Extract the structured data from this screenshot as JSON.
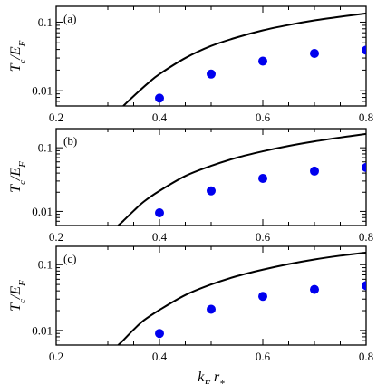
{
  "chart_data": [
    {
      "type": "scatter",
      "panel_label": "(a)",
      "ylabel": "T_c/E_F",
      "xlabel": "",
      "xlim": [
        0.2,
        0.8
      ],
      "ylim": [
        0.006,
        0.17
      ],
      "y_scale": "log",
      "x_ticks": [
        0.2,
        0.4,
        0.6,
        0.8
      ],
      "x_tick_labels": [
        "0.2",
        "0.4",
        "0.6",
        "0.8"
      ],
      "y_ticks": [
        0.01,
        0.1
      ],
      "y_tick_labels": [
        "0.01",
        "0.1"
      ],
      "series": [
        {
          "kind": "line",
          "color": "#000000",
          "x": [
            0.33,
            0.34,
            0.36,
            0.38,
            0.4,
            0.45,
            0.5,
            0.55,
            0.6,
            0.65,
            0.7,
            0.75,
            0.8
          ],
          "y": [
            0.006,
            0.0071,
            0.0098,
            0.0133,
            0.0175,
            0.03,
            0.045,
            0.06,
            0.076,
            0.091,
            0.106,
            0.12,
            0.134
          ]
        },
        {
          "kind": "points",
          "color": "#0000ee",
          "x": [
            0.4,
            0.5,
            0.6,
            0.7,
            0.8
          ],
          "y": [
            0.0078,
            0.0175,
            0.027,
            0.035,
            0.039
          ]
        }
      ]
    },
    {
      "type": "scatter",
      "panel_label": "(b)",
      "ylabel": "T_c/E_F",
      "xlabel": "",
      "xlim": [
        0.2,
        0.8
      ],
      "ylim": [
        0.006,
        0.2
      ],
      "y_scale": "log",
      "x_ticks": [
        0.2,
        0.4,
        0.6,
        0.8
      ],
      "x_tick_labels": [
        "0.2",
        "0.4",
        "0.6",
        "0.8"
      ],
      "y_ticks": [
        0.01,
        0.1
      ],
      "y_tick_labels": [
        "0.01",
        "0.1"
      ],
      "series": [
        {
          "kind": "line",
          "color": "#000000",
          "x": [
            0.32,
            0.33,
            0.35,
            0.37,
            0.4,
            0.45,
            0.5,
            0.55,
            0.6,
            0.65,
            0.7,
            0.75,
            0.8
          ],
          "y": [
            0.006,
            0.0071,
            0.0102,
            0.0143,
            0.021,
            0.036,
            0.052,
            0.07,
            0.088,
            0.107,
            0.126,
            0.145,
            0.165
          ]
        },
        {
          "kind": "points",
          "color": "#0000ee",
          "x": [
            0.4,
            0.5,
            0.6,
            0.7,
            0.8
          ],
          "y": [
            0.0095,
            0.021,
            0.033,
            0.043,
            0.049
          ]
        }
      ]
    },
    {
      "type": "scatter",
      "panel_label": "(c)",
      "ylabel": "T_c/E_F",
      "xlabel": "k_F r_*",
      "xlim": [
        0.2,
        0.8
      ],
      "ylim": [
        0.006,
        0.19
      ],
      "y_scale": "log",
      "x_ticks": [
        0.2,
        0.4,
        0.6,
        0.8
      ],
      "x_tick_labels": [
        "0.2",
        "0.4",
        "0.6",
        "0.8"
      ],
      "y_ticks": [
        0.01,
        0.1
      ],
      "y_tick_labels": [
        "0.01",
        "0.1"
      ],
      "series": [
        {
          "kind": "line",
          "color": "#000000",
          "x": [
            0.32,
            0.33,
            0.35,
            0.37,
            0.4,
            0.45,
            0.5,
            0.55,
            0.6,
            0.65,
            0.7,
            0.75,
            0.8
          ],
          "y": [
            0.006,
            0.0071,
            0.0103,
            0.0143,
            0.0205,
            0.0345,
            0.05,
            0.067,
            0.084,
            0.102,
            0.12,
            0.137,
            0.153
          ]
        },
        {
          "kind": "points",
          "color": "#0000ee",
          "x": [
            0.4,
            0.5,
            0.6,
            0.7,
            0.8
          ],
          "y": [
            0.009,
            0.021,
            0.033,
            0.042,
            0.048
          ]
        }
      ]
    }
  ]
}
